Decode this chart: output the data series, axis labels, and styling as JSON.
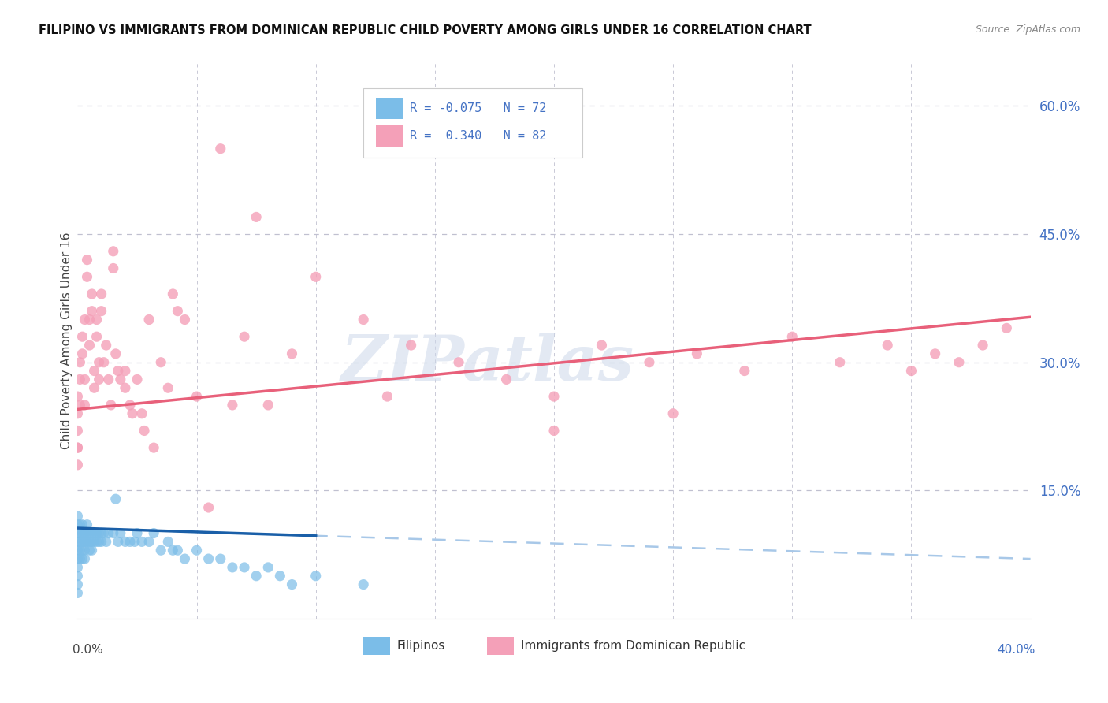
{
  "title": "FILIPINO VS IMMIGRANTS FROM DOMINICAN REPUBLIC CHILD POVERTY AMONG GIRLS UNDER 16 CORRELATION CHART",
  "source": "Source: ZipAtlas.com",
  "ylabel": "Child Poverty Among Girls Under 16",
  "watermark": "ZIPatlas",
  "background_color": "#ffffff",
  "plot_background": "#ffffff",
  "grid_color": "#c0c0d0",
  "blue_dot_color": "#7bbde8",
  "pink_dot_color": "#f4a0b8",
  "blue_line_color": "#1a5fa8",
  "pink_line_color": "#e8607a",
  "dashed_line_color": "#a8c8e8",
  "x_min": 0.0,
  "x_max": 0.4,
  "y_min": 0.0,
  "y_max": 0.65,
  "filipinos_x": [
    0.0,
    0.0,
    0.0,
    0.0,
    0.0,
    0.0,
    0.0,
    0.0,
    0.0,
    0.0,
    0.001,
    0.001,
    0.001,
    0.001,
    0.001,
    0.002,
    0.002,
    0.002,
    0.002,
    0.002,
    0.003,
    0.003,
    0.003,
    0.003,
    0.004,
    0.004,
    0.004,
    0.005,
    0.005,
    0.005,
    0.006,
    0.006,
    0.006,
    0.007,
    0.007,
    0.008,
    0.008,
    0.009,
    0.009,
    0.01,
    0.01,
    0.011,
    0.012,
    0.013,
    0.015,
    0.016,
    0.017,
    0.018,
    0.02,
    0.022,
    0.024,
    0.025,
    0.027,
    0.03,
    0.032,
    0.035,
    0.038,
    0.04,
    0.042,
    0.045,
    0.05,
    0.055,
    0.06,
    0.065,
    0.07,
    0.075,
    0.08,
    0.085,
    0.09,
    0.1,
    0.12
  ],
  "filipinos_y": [
    0.1,
    0.09,
    0.08,
    0.07,
    0.06,
    0.05,
    0.04,
    0.03,
    0.11,
    0.12,
    0.1,
    0.09,
    0.08,
    0.07,
    0.11,
    0.1,
    0.09,
    0.08,
    0.07,
    0.11,
    0.1,
    0.09,
    0.08,
    0.07,
    0.1,
    0.09,
    0.11,
    0.1,
    0.09,
    0.08,
    0.1,
    0.09,
    0.08,
    0.1,
    0.09,
    0.1,
    0.09,
    0.1,
    0.09,
    0.1,
    0.09,
    0.1,
    0.09,
    0.1,
    0.1,
    0.14,
    0.09,
    0.1,
    0.09,
    0.09,
    0.09,
    0.1,
    0.09,
    0.09,
    0.1,
    0.08,
    0.09,
    0.08,
    0.08,
    0.07,
    0.08,
    0.07,
    0.07,
    0.06,
    0.06,
    0.05,
    0.06,
    0.05,
    0.04,
    0.05,
    0.04
  ],
  "dominican_x": [
    0.0,
    0.0,
    0.0,
    0.0,
    0.0,
    0.0,
    0.001,
    0.001,
    0.001,
    0.002,
    0.002,
    0.003,
    0.003,
    0.003,
    0.004,
    0.004,
    0.005,
    0.005,
    0.006,
    0.006,
    0.007,
    0.007,
    0.008,
    0.008,
    0.009,
    0.009,
    0.01,
    0.01,
    0.011,
    0.012,
    0.013,
    0.014,
    0.015,
    0.015,
    0.016,
    0.017,
    0.018,
    0.02,
    0.02,
    0.022,
    0.023,
    0.025,
    0.027,
    0.028,
    0.03,
    0.032,
    0.035,
    0.038,
    0.04,
    0.042,
    0.045,
    0.05,
    0.055,
    0.06,
    0.065,
    0.07,
    0.075,
    0.08,
    0.09,
    0.1,
    0.12,
    0.14,
    0.16,
    0.18,
    0.2,
    0.22,
    0.24,
    0.26,
    0.28,
    0.3,
    0.32,
    0.34,
    0.35,
    0.36,
    0.37,
    0.38,
    0.39,
    0.13,
    0.25,
    0.2
  ],
  "dominican_y": [
    0.22,
    0.2,
    0.18,
    0.24,
    0.26,
    0.2,
    0.28,
    0.25,
    0.3,
    0.33,
    0.31,
    0.28,
    0.25,
    0.35,
    0.42,
    0.4,
    0.35,
    0.32,
    0.38,
    0.36,
    0.29,
    0.27,
    0.35,
    0.33,
    0.3,
    0.28,
    0.38,
    0.36,
    0.3,
    0.32,
    0.28,
    0.25,
    0.43,
    0.41,
    0.31,
    0.29,
    0.28,
    0.29,
    0.27,
    0.25,
    0.24,
    0.28,
    0.24,
    0.22,
    0.35,
    0.2,
    0.3,
    0.27,
    0.38,
    0.36,
    0.35,
    0.26,
    0.13,
    0.55,
    0.25,
    0.33,
    0.47,
    0.25,
    0.31,
    0.4,
    0.35,
    0.32,
    0.3,
    0.28,
    0.26,
    0.32,
    0.3,
    0.31,
    0.29,
    0.33,
    0.3,
    0.32,
    0.29,
    0.31,
    0.3,
    0.32,
    0.34,
    0.26,
    0.24,
    0.22
  ]
}
